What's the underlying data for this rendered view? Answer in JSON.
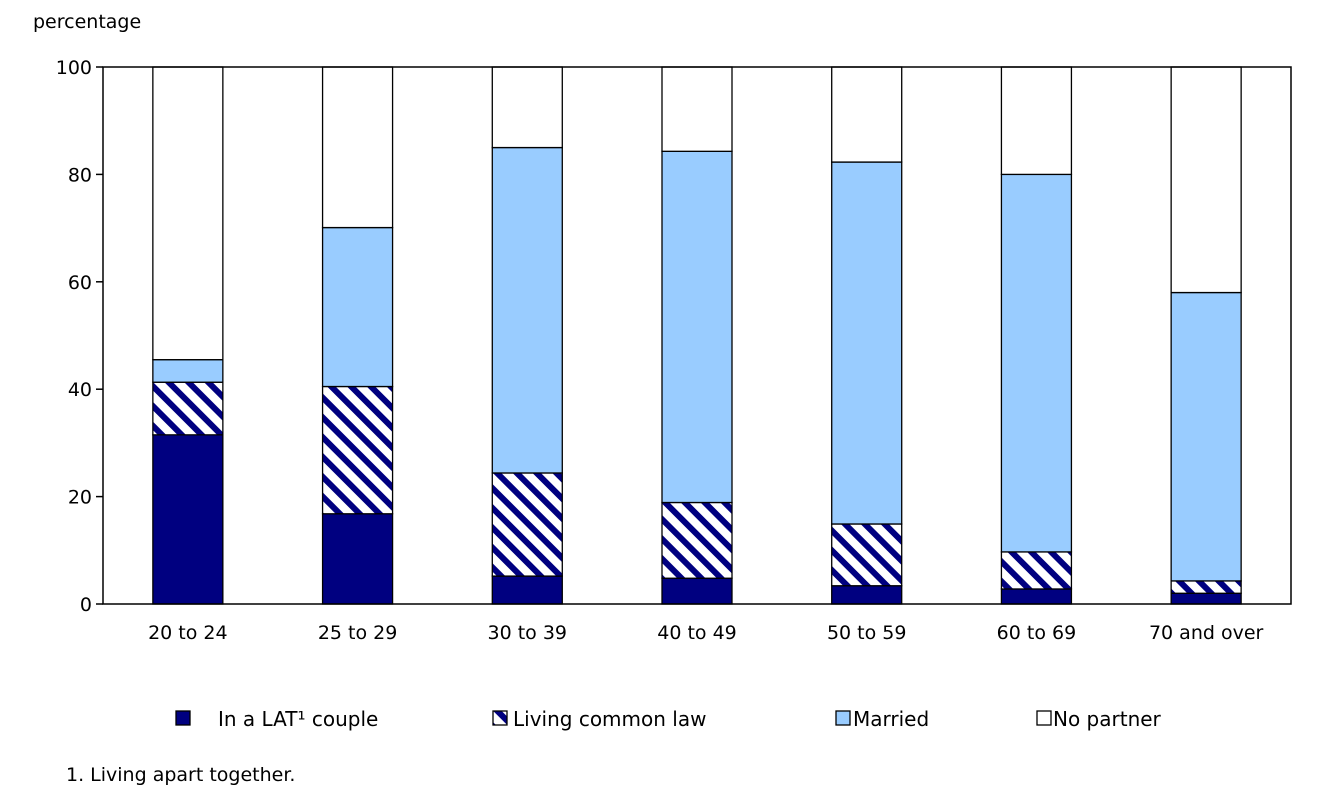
{
  "chart_data": {
    "type": "bar",
    "stacked": true,
    "title": "",
    "xlabel": "",
    "ylabel": "percentage",
    "ylim": [
      0,
      100
    ],
    "yticks": [
      0,
      20,
      40,
      60,
      80,
      100
    ],
    "grid": false,
    "legend_position": "bottom",
    "categories": [
      "20 to 24",
      "25 to 29",
      "30 to 39",
      "40 to 49",
      "50 to 59",
      "60 to 69",
      "70 and over"
    ],
    "series": [
      {
        "name": "In a LAT¹ couple",
        "key": "lat",
        "color": "#000080",
        "pattern": "solid",
        "values": [
          31.5,
          16.8,
          5.2,
          4.8,
          3.4,
          2.8,
          2.0
        ]
      },
      {
        "name": "Living common law",
        "key": "common_law",
        "color": "#000080",
        "pattern": "hatch",
        "values": [
          9.8,
          23.7,
          19.2,
          14.1,
          11.5,
          6.9,
          2.3
        ]
      },
      {
        "name": "Married",
        "key": "married",
        "color": "#99ccff",
        "pattern": "solid",
        "values": [
          4.2,
          29.6,
          60.6,
          65.4,
          67.4,
          70.3,
          53.7
        ]
      },
      {
        "name": "No partner",
        "key": "no_partner",
        "color": "#ffffff",
        "pattern": "solid",
        "values": [
          54.5,
          29.9,
          15.0,
          15.7,
          17.7,
          20.0,
          42.0
        ]
      }
    ],
    "footnote": "1. Living apart together."
  }
}
